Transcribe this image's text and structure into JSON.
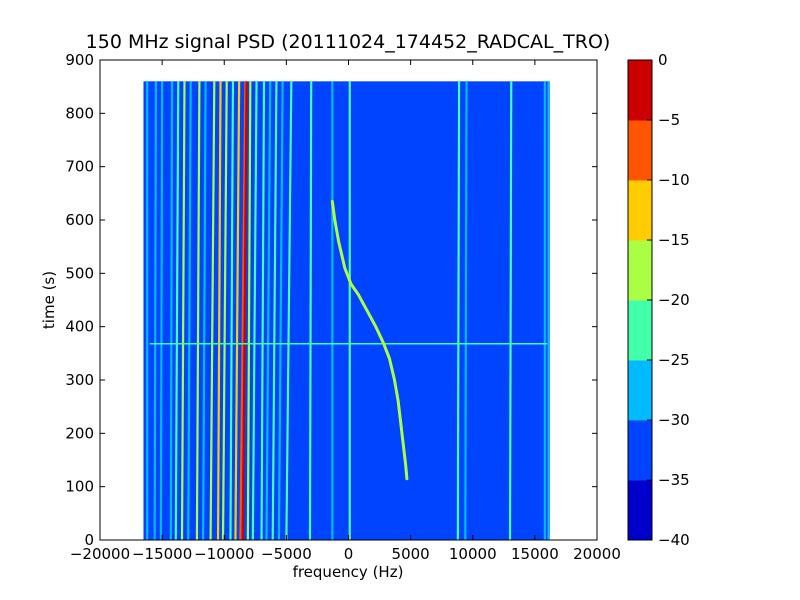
{
  "chart_data": {
    "type": "heatmap",
    "title": "150 MHz signal PSD (20111024_174452_RADCAL_TRO)",
    "xlabel": "frequency (Hz)",
    "ylabel": "time (s)",
    "xlim": [
      -20000,
      20000
    ],
    "ylim": [
      0,
      900
    ],
    "xticks": [
      -20000,
      -15000,
      -10000,
      -5000,
      0,
      5000,
      10000,
      15000,
      20000
    ],
    "yticks": [
      0,
      100,
      200,
      300,
      400,
      500,
      600,
      700,
      800,
      900
    ],
    "data_extent": {
      "x": [
        -16500,
        16200
      ],
      "y": [
        0,
        860
      ]
    },
    "background_level": -35,
    "colorbar": {
      "levels": [
        -40,
        -35,
        -30,
        -25,
        -20,
        -15,
        -10,
        -5,
        0
      ],
      "tick_labels": [
        "−40",
        "−35",
        "−30",
        "−25",
        "−20",
        "−15",
        "−10",
        "−5",
        "0"
      ],
      "colors": [
        "#0000cd",
        "#0044ff",
        "#00bbff",
        "#44ffaa",
        "#aaff44",
        "#ffcc00",
        "#ff5500",
        "#cc0000"
      ]
    },
    "vertical_lines": [
      {
        "x": -16200,
        "x_end": -16200,
        "level": -30
      },
      {
        "x": -15500,
        "x_end": -15600,
        "level": -30
      },
      {
        "x": -15000,
        "x_end": -15100,
        "level": -30
      },
      {
        "x": -14200,
        "x_end": -14300,
        "level": -30
      },
      {
        "x": -13700,
        "x_end": -13900,
        "level": -25
      },
      {
        "x": -13200,
        "x_end": -13400,
        "level": -20
      },
      {
        "x": -12700,
        "x_end": -12900,
        "level": -30
      },
      {
        "x": -12000,
        "x_end": -12200,
        "level": -20
      },
      {
        "x": -11500,
        "x_end": -11700,
        "level": -30
      },
      {
        "x": -10800,
        "x_end": -11100,
        "level": -20
      },
      {
        "x": -10300,
        "x_end": -10500,
        "level": -15
      },
      {
        "x": -9800,
        "x_end": -10100,
        "level": -20
      },
      {
        "x": -9300,
        "x_end": -9500,
        "level": -25
      },
      {
        "x": -8800,
        "x_end": -9100,
        "level": -15
      },
      {
        "x": -8300,
        "x_end": -8700,
        "level": -10
      },
      {
        "x": -8200,
        "x_end": -8500,
        "level": -5
      },
      {
        "x": -7900,
        "x_end": -8100,
        "level": -20
      },
      {
        "x": -7400,
        "x_end": -7700,
        "level": -25
      },
      {
        "x": -6800,
        "x_end": -7000,
        "level": -25
      },
      {
        "x": -6300,
        "x_end": -6600,
        "level": -30
      },
      {
        "x": -5800,
        "x_end": -6100,
        "level": -25
      },
      {
        "x": -5300,
        "x_end": -5600,
        "level": -30
      },
      {
        "x": -4600,
        "x_end": -5000,
        "level": -25
      },
      {
        "x": -3000,
        "x_end": -3100,
        "level": -25
      },
      {
        "x": -1300,
        "x_end": -1300,
        "level": -30
      },
      {
        "x": 100,
        "x_end": 100,
        "level": -25
      },
      {
        "x": 8900,
        "x_end": 8800,
        "level": -25
      },
      {
        "x": 9500,
        "x_end": 9400,
        "level": -30
      },
      {
        "x": 13100,
        "x_end": 13000,
        "level": -25
      },
      {
        "x": 15800,
        "x_end": 15800,
        "level": -30
      },
      {
        "x": 16100,
        "x_end": 16100,
        "level": -30
      }
    ],
    "horizontal_line": {
      "y": 368,
      "x": [
        -16000,
        16000
      ],
      "level": -25
    },
    "chirp": {
      "level": -20,
      "points": [
        [
          -1300,
          635
        ],
        [
          -1100,
          600
        ],
        [
          -800,
          560
        ],
        [
          -300,
          510
        ],
        [
          200,
          480
        ],
        [
          800,
          460
        ],
        [
          1500,
          430
        ],
        [
          2200,
          400
        ],
        [
          2800,
          370
        ],
        [
          3300,
          340
        ],
        [
          3700,
          300
        ],
        [
          4000,
          260
        ],
        [
          4200,
          220
        ],
        [
          4400,
          180
        ],
        [
          4600,
          140
        ],
        [
          4700,
          115
        ]
      ]
    }
  }
}
